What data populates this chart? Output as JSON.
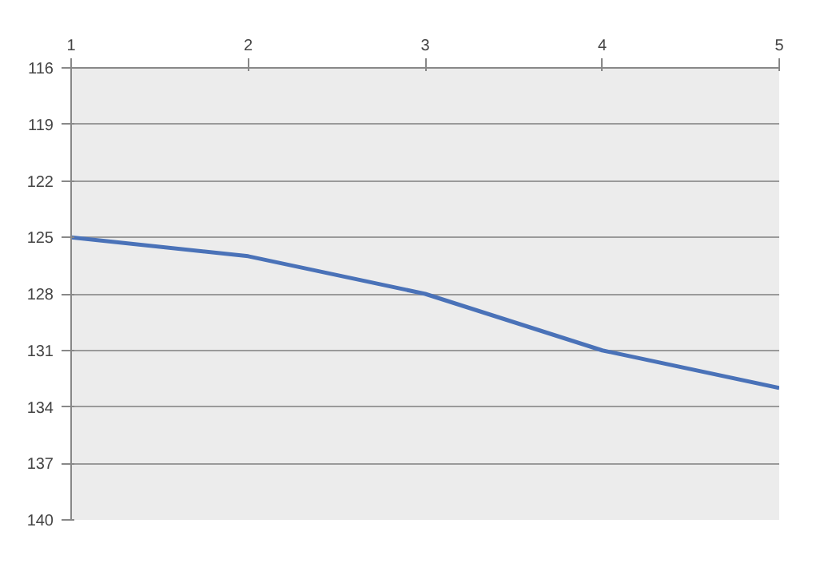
{
  "chart_data": {
    "type": "line",
    "x": [
      1,
      2,
      3,
      4,
      5
    ],
    "series": [
      {
        "color": "#4a72b8",
        "values": [
          125,
          126,
          128,
          131,
          133
        ]
      }
    ],
    "xlim": [
      1,
      5
    ],
    "xticks": [
      1,
      2,
      3,
      4,
      5
    ],
    "ylim": [
      140,
      116
    ],
    "yticks": [
      116,
      119,
      122,
      125,
      128,
      131,
      134,
      137,
      140
    ],
    "grid": "y",
    "marker": "none",
    "line_style": "solid"
  }
}
